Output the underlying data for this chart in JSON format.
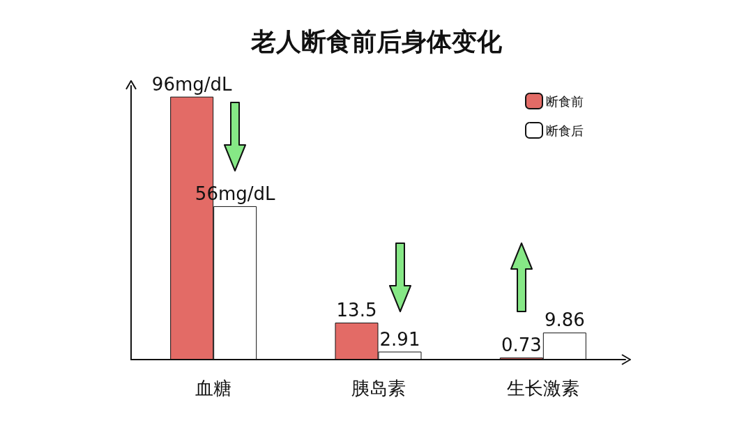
{
  "chart_data": {
    "type": "bar",
    "title": "老人断食前后身体变化",
    "categories": [
      "血糖",
      "胰岛素",
      "生长激素"
    ],
    "series": [
      {
        "name": "断食前",
        "color": "#e36b66",
        "values": [
          96,
          13.5,
          0.73
        ],
        "value_labels": [
          "96mg/dL",
          "13.5",
          "0.73"
        ]
      },
      {
        "name": "断食后",
        "color": "#ffffff",
        "values": [
          56,
          2.91,
          9.86
        ],
        "value_labels": [
          "56mg/dL",
          "2.91",
          "9.86"
        ]
      }
    ],
    "legend": "top right",
    "grid": false
  }
}
